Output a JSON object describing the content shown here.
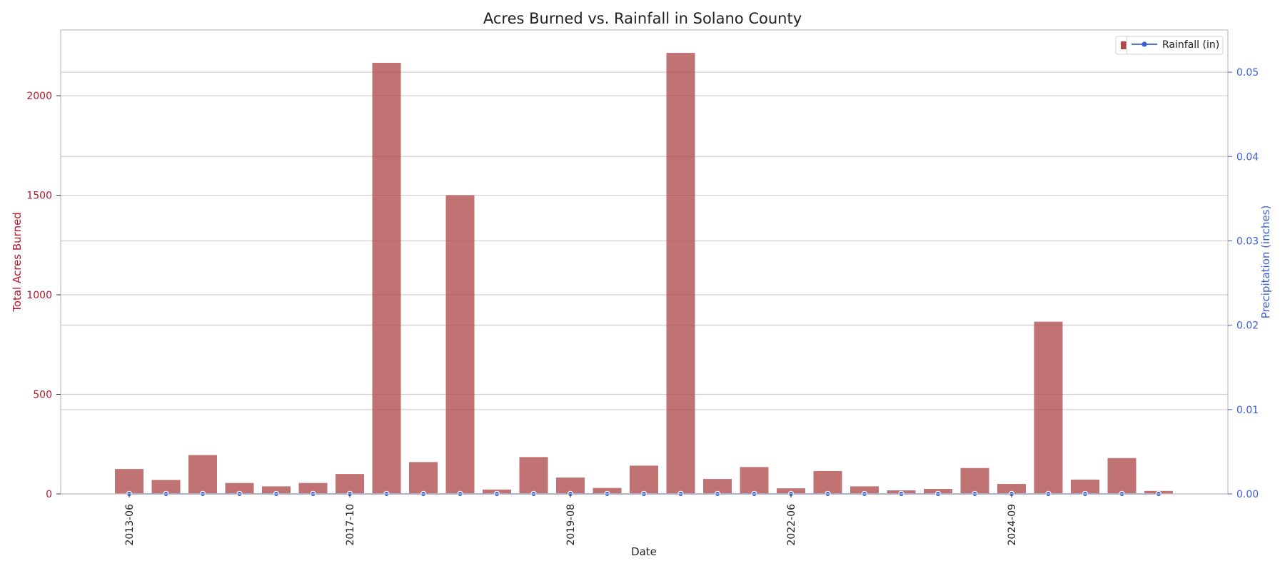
{
  "chart_data": {
    "type": "bar",
    "title": "Acres Burned vs. Rainfall in Solano County",
    "xlabel": "Date",
    "ylabel": "Total Acres Burned",
    "y2label": "Precipitation (inches)",
    "ylim": [
      0,
      2330
    ],
    "y2lim": [
      0,
      0.055
    ],
    "yticks": [
      0,
      500,
      1000,
      1500,
      2000
    ],
    "y2ticks": [
      "0.00",
      "0.01",
      "0.02",
      "0.03",
      "0.04",
      "0.05"
    ],
    "xtick_labels": [
      {
        "index": 0,
        "label": "2013-06"
      },
      {
        "index": 6,
        "label": "2017-10"
      },
      {
        "index": 12,
        "label": "2019-08"
      },
      {
        "index": 18,
        "label": "2022-06"
      },
      {
        "index": 24,
        "label": "2024-09"
      }
    ],
    "grid": true,
    "legend_position": "top-right",
    "colors": {
      "bars": "#b04a4a",
      "line": "#3a5fd6",
      "left_axis": "#b2182b",
      "right_axis": "#3a5fd6"
    },
    "series": [
      {
        "name": "Acres Burned",
        "axis": "left",
        "kind": "bar",
        "values": [
          125,
          70,
          195,
          55,
          38,
          55,
          100,
          2165,
          160,
          1500,
          22,
          185,
          82,
          30,
          142,
          2215,
          75,
          135,
          28,
          115,
          38,
          18,
          25,
          130,
          50,
          865,
          72,
          180,
          15
        ]
      },
      {
        "name": "Rainfall (in)",
        "axis": "right",
        "kind": "line",
        "values": [
          0,
          0,
          0,
          0,
          0,
          0,
          0,
          0,
          0,
          0,
          0,
          0,
          0,
          0,
          0,
          0,
          0,
          0,
          0,
          0,
          0,
          0,
          0,
          0,
          0,
          0,
          0,
          0,
          0
        ]
      }
    ]
  }
}
